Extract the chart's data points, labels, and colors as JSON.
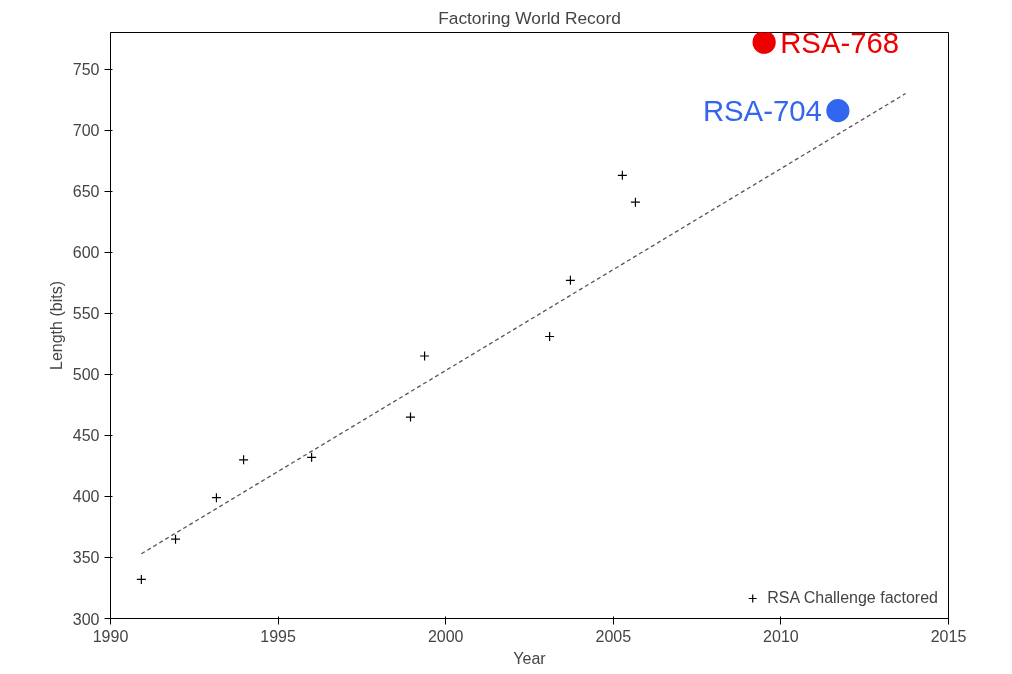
{
  "chart_data": {
    "type": "scatter",
    "title": "Factoring World Record",
    "xlabel": "Year",
    "ylabel": "Length (bits)",
    "xlim": [
      1990,
      2015
    ],
    "xticks": [
      1990,
      1995,
      2000,
      2005,
      2010,
      2015
    ],
    "ylim": [
      300,
      780
    ],
    "yticks": [
      300,
      350,
      400,
      450,
      500,
      550,
      600,
      650,
      700,
      750
    ],
    "grid": false,
    "legend": "bottom right",
    "series": [
      {
        "name": "RSA Challenge factored",
        "color": "#000000",
        "marker": "cross",
        "x": [
          1990.92,
          1991.94,
          1993.16,
          1993.97,
          1996.0,
          1998.95,
          1999.37,
          2003.1,
          2003.72,
          2005.27,
          2005.66
        ],
        "values": [
          332,
          365,
          399,
          430,
          432,
          465,
          515,
          531,
          577,
          663,
          641
        ]
      },
      {
        "type": "line",
        "color": "#555555",
        "line_style": "dashed",
        "marker": "none",
        "x": [
          1990.92,
          2013.72
        ],
        "values": [
          353,
          730
        ]
      },
      {
        "name": "RSA-768",
        "color": "#ee0000",
        "marker": "circle",
        "x": [
          2009.5
        ],
        "values": [
          772
        ]
      },
      {
        "name": "RSA-704",
        "color": "#3366ee",
        "marker": "circle",
        "x": [
          2011.7
        ],
        "values": [
          716
        ]
      }
    ]
  }
}
